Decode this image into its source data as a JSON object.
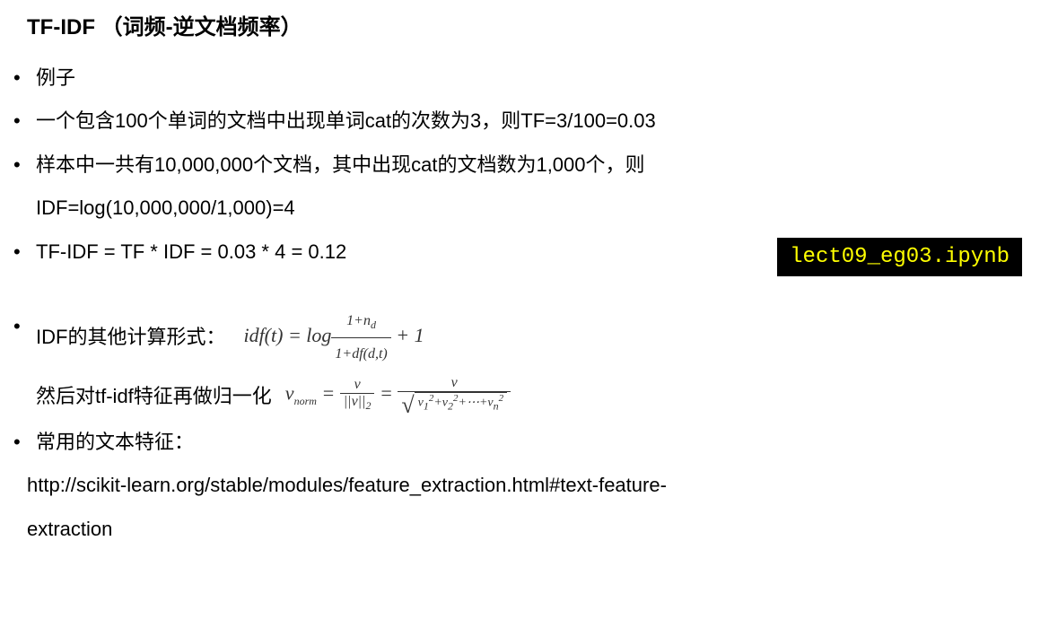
{
  "title": "TF-IDF （词频-逆文档频率）",
  "bullets": {
    "b1": "例子",
    "b2": "一个包含100个单词的文档中出现单词cat的次数为3，则TF=3/100=0.03",
    "b3": "样本中一共有10,000,000个文档，其中出现cat的文档数为1,000个，则",
    "b3_sub": "IDF=log(10,000,000/1,000)=4",
    "b4": "TF-IDF = TF * IDF = 0.03 * 4 = 0.12",
    "b5_prefix": "IDF的其他计算形式：",
    "b5_norm_label": "然后对tf-idf特征再做归一化",
    "b6": "常用的文本特征："
  },
  "file_badge": "lect09_eg03.ipynb",
  "formula_idf": {
    "lhs": "idf(t) = log",
    "num": "1+n",
    "num_sub": "d",
    "den": "1+df(d,t)",
    "tail": " + 1"
  },
  "formula_norm": {
    "lhs": "v",
    "lhs_sub": "norm",
    "eq": " = ",
    "f1_num": "v",
    "f1_den": "||v||",
    "f1_den_sub": "2",
    "f2_num": "v",
    "sqrt_body_parts": {
      "v1": "v",
      "s1": "1",
      "p2": "2",
      "plus": "+",
      "v2": "v",
      "s2": "2",
      "dots": "+⋯+",
      "vn": "v",
      "sn": "n"
    }
  },
  "url_line1": "http://scikit-learn.org/stable/modules/feature_extraction.html#text-feature-",
  "url_line2": "extraction",
  "colors": {
    "bg": "#ffffff",
    "text": "#000000",
    "badge_bg": "#000000",
    "badge_text": "#ffff00"
  }
}
